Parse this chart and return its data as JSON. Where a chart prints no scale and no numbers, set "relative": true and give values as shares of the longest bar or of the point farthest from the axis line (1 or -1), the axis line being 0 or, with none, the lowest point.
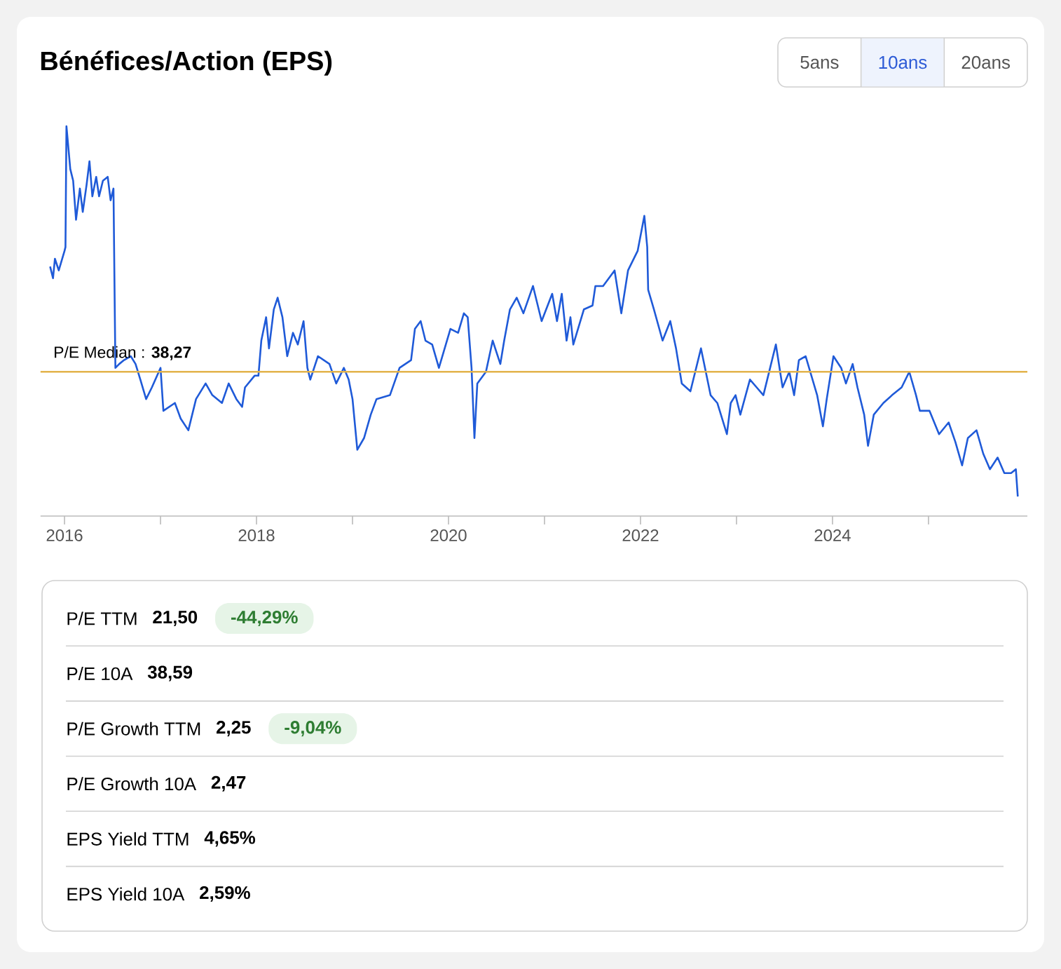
{
  "chart_data": [
    {
      "type": "line",
      "title": "Bénéfices/Action (EPS)",
      "relative": true,
      "color": "#1f5ad8",
      "annotations": [
        "5ans",
        "10ans",
        "20ans"
      ],
      "xlim": [
        2015.75,
        2026.03
      ],
      "xticks": [
        2016,
        {
          "value": 2017,
          "label": null
        },
        2018,
        {
          "value": 2019,
          "label": null
        },
        2020,
        {
          "value": 2021,
          "label": null
        },
        2022,
        {
          "value": 2023,
          "label": null
        },
        2024,
        {
          "value": 2025,
          "label": null
        }
      ],
      "ref_lines": [
        {
          "axis": "y",
          "value": 0.37,
          "label": "P/E Median : **38,27**",
          "color": "#e3b34b"
        }
      ],
      "x": [
        2015.85,
        2015.88,
        2015.9,
        2015.94,
        2016.0,
        2016.01,
        2016.02,
        2016.06,
        2016.09,
        2016.12,
        2016.16,
        2016.19,
        2016.23,
        2016.26,
        2016.29,
        2016.33,
        2016.36,
        2016.4,
        2016.45,
        2016.48,
        2016.51,
        2016.53,
        2016.57,
        2016.62,
        2016.69,
        2016.74,
        2016.79,
        2016.85,
        2016.91,
        2017.0,
        2017.03,
        2017.15,
        2017.21,
        2017.29,
        2017.37,
        2017.47,
        2017.54,
        2017.64,
        2017.71,
        2017.79,
        2017.85,
        2017.88,
        2017.98,
        2018.02,
        2018.05,
        2018.1,
        2018.13,
        2018.18,
        2018.22,
        2018.27,
        2018.32,
        2018.38,
        2018.43,
        2018.49,
        2018.53,
        2018.56,
        2018.64,
        2018.76,
        2018.83,
        2018.91,
        2018.96,
        2019.0,
        2019.05,
        2019.12,
        2019.19,
        2019.25,
        2019.39,
        2019.49,
        2019.61,
        2019.65,
        2019.71,
        2019.76,
        2019.83,
        2019.9,
        2020.02,
        2020.1,
        2020.16,
        2020.2,
        2020.24,
        2020.27,
        2020.3,
        2020.39,
        2020.46,
        2020.54,
        2020.58,
        2020.64,
        2020.71,
        2020.78,
        2020.88,
        2020.97,
        2021.08,
        2021.13,
        2021.18,
        2021.23,
        2021.27,
        2021.3,
        2021.41,
        2021.5,
        2021.53,
        2021.61,
        2021.73,
        2021.8,
        2021.87,
        2021.97,
        2022.04,
        2022.07,
        2022.08,
        2022.14,
        2022.23,
        2022.31,
        2022.37,
        2022.43,
        2022.52,
        2022.63,
        2022.73,
        2022.8,
        2022.9,
        2022.94,
        2022.99,
        2023.04,
        2023.14,
        2023.21,
        2023.28,
        2023.41,
        2023.48,
        2023.55,
        2023.6,
        2023.65,
        2023.72,
        2023.84,
        2023.9,
        2023.94,
        2024.01,
        2024.09,
        2024.14,
        2024.21,
        2024.26,
        2024.33,
        2024.37,
        2024.43,
        2024.53,
        2024.62,
        2024.72,
        2024.8,
        2024.87,
        2024.91,
        2025.01,
        2025.11,
        2025.21,
        2025.28,
        2025.35,
        2025.41,
        2025.5,
        2025.57,
        2025.64,
        2025.72,
        2025.79,
        2025.86,
        2025.91,
        2025.93
      ],
      "values": [
        0.64,
        0.61,
        0.66,
        0.63,
        0.68,
        0.69,
        1.0,
        0.89,
        0.86,
        0.76,
        0.84,
        0.78,
        0.85,
        0.91,
        0.82,
        0.87,
        0.82,
        0.86,
        0.87,
        0.81,
        0.84,
        0.38,
        0.39,
        0.4,
        0.41,
        0.39,
        0.35,
        0.3,
        0.33,
        0.38,
        0.27,
        0.29,
        0.25,
        0.22,
        0.3,
        0.34,
        0.31,
        0.29,
        0.34,
        0.3,
        0.28,
        0.33,
        0.36,
        0.36,
        0.45,
        0.51,
        0.43,
        0.53,
        0.56,
        0.51,
        0.41,
        0.47,
        0.44,
        0.5,
        0.38,
        0.35,
        0.41,
        0.39,
        0.34,
        0.38,
        0.35,
        0.3,
        0.17,
        0.2,
        0.26,
        0.3,
        0.31,
        0.38,
        0.4,
        0.48,
        0.5,
        0.45,
        0.44,
        0.38,
        0.48,
        0.47,
        0.52,
        0.51,
        0.38,
        0.2,
        0.34,
        0.37,
        0.45,
        0.39,
        0.45,
        0.53,
        0.56,
        0.52,
        0.59,
        0.5,
        0.57,
        0.5,
        0.57,
        0.45,
        0.51,
        0.44,
        0.53,
        0.54,
        0.59,
        0.59,
        0.63,
        0.52,
        0.63,
        0.68,
        0.77,
        0.69,
        0.58,
        0.53,
        0.45,
        0.5,
        0.43,
        0.34,
        0.32,
        0.43,
        0.31,
        0.29,
        0.21,
        0.29,
        0.31,
        0.26,
        0.35,
        0.33,
        0.31,
        0.44,
        0.33,
        0.37,
        0.31,
        0.4,
        0.41,
        0.31,
        0.23,
        0.3,
        0.41,
        0.38,
        0.34,
        0.39,
        0.33,
        0.26,
        0.18,
        0.26,
        0.29,
        0.31,
        0.33,
        0.37,
        0.31,
        0.27,
        0.27,
        0.21,
        0.24,
        0.19,
        0.13,
        0.2,
        0.22,
        0.16,
        0.12,
        0.15,
        0.11,
        0.11,
        0.12,
        0.05
      ]
    },
    {
      "type": "other",
      "categories": [
        "P/E TTM",
        "P/E 10A",
        "P/E Growth TTM",
        "P/E Growth 10A",
        "EPS Yield TTM",
        "EPS Yield 10A"
      ],
      "value_labels": [
        "21,50",
        "38,59",
        "2,25",
        "2,47",
        "4,65%",
        "2,59%"
      ],
      "annotations": [
        {
          "text": "-44,29%",
          "x": "P/E TTM"
        },
        {
          "text": "-9,04%",
          "x": "P/E Growth TTM"
        }
      ]
    }
  ]
}
